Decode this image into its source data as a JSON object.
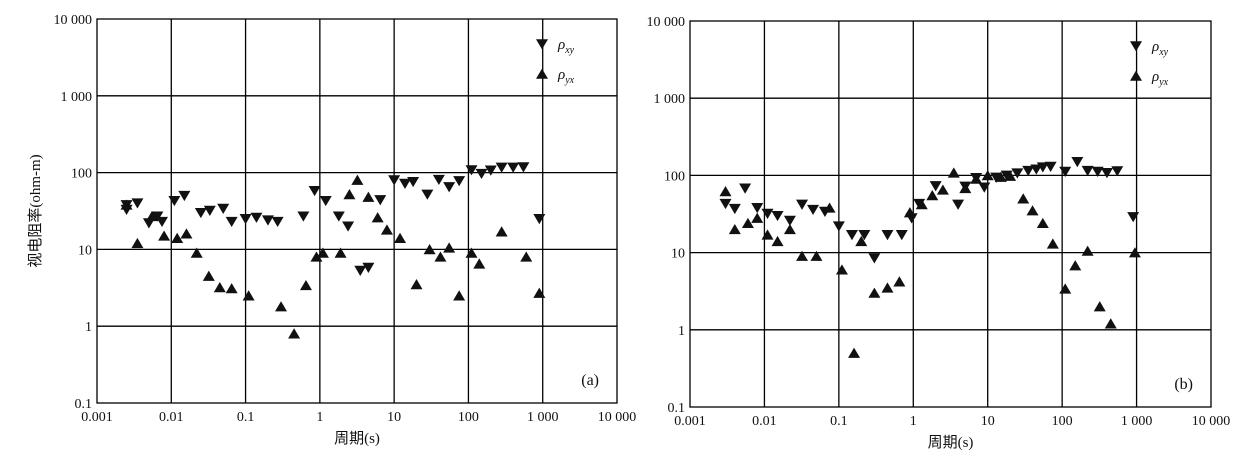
{
  "chart_data": [
    {
      "type": "scatter",
      "panel_label": "(a)",
      "xlabel": "周期(s)",
      "ylabel": "视电阻率(ohm-m)",
      "xscale": "log",
      "yscale": "log",
      "xlim": [
        0.001,
        10000
      ],
      "ylim": [
        0.1,
        10000
      ],
      "xticks": [
        "0.001",
        "0.01",
        "0.1",
        "1",
        "10",
        "100",
        "1 000",
        "10 000"
      ],
      "yticks": [
        "0.1",
        "1",
        "10",
        "100",
        "1 000",
        "10 000"
      ],
      "grid": true,
      "legend_position": "top-right",
      "series": [
        {
          "name": "ρxy",
          "marker": "triangle-down",
          "points": [
            [
              0.0025,
              33
            ],
            [
              0.0025,
              38
            ],
            [
              0.0035,
              40
            ],
            [
              0.005,
              22
            ],
            [
              0.0065,
              27
            ],
            [
              0.0075,
              23
            ],
            [
              0.011,
              43
            ],
            [
              0.015,
              50
            ],
            [
              0.025,
              30
            ],
            [
              0.033,
              32
            ],
            [
              0.05,
              34
            ],
            [
              0.065,
              23
            ],
            [
              0.1,
              25
            ],
            [
              0.14,
              26
            ],
            [
              0.2,
              24
            ],
            [
              0.27,
              23
            ],
            [
              0.6,
              27
            ],
            [
              0.85,
              58
            ],
            [
              1.2,
              43
            ],
            [
              1.8,
              27
            ],
            [
              2.4,
              20
            ],
            [
              3.5,
              5.3
            ],
            [
              4.5,
              5.8
            ],
            [
              6.5,
              44
            ],
            [
              10,
              80
            ],
            [
              14,
              72
            ],
            [
              18,
              76
            ],
            [
              28,
              52
            ],
            [
              40,
              81
            ],
            [
              55,
              65
            ],
            [
              75,
              78
            ],
            [
              110,
              108
            ],
            [
              150,
              97
            ],
            [
              200,
              107
            ],
            [
              280,
              117
            ],
            [
              400,
              117
            ],
            [
              550,
              118
            ],
            [
              900,
              25
            ]
          ]
        },
        {
          "name": "ρyx",
          "marker": "triangle-up",
          "points": [
            [
              0.0025,
              38
            ],
            [
              0.0035,
              12
            ],
            [
              0.0055,
              27
            ],
            [
              0.008,
              15
            ],
            [
              0.012,
              14
            ],
            [
              0.016,
              16
            ],
            [
              0.022,
              9
            ],
            [
              0.032,
              4.5
            ],
            [
              0.045,
              3.2
            ],
            [
              0.065,
              3.1
            ],
            [
              0.11,
              2.5
            ],
            [
              0.3,
              1.8
            ],
            [
              0.45,
              0.8
            ],
            [
              0.65,
              3.4
            ],
            [
              0.9,
              8
            ],
            [
              1.1,
              9
            ],
            [
              1.9,
              9
            ],
            [
              2.5,
              52
            ],
            [
              3.2,
              80
            ],
            [
              4.5,
              48
            ],
            [
              6,
              26
            ],
            [
              8,
              18
            ],
            [
              12,
              14
            ],
            [
              20,
              3.5
            ],
            [
              30,
              10
            ],
            [
              42,
              8
            ],
            [
              55,
              10.5
            ],
            [
              75,
              2.5
            ],
            [
              110,
              9
            ],
            [
              140,
              6.5
            ],
            [
              280,
              17
            ],
            [
              600,
              8
            ],
            [
              900,
              2.7
            ]
          ]
        }
      ]
    },
    {
      "type": "scatter",
      "panel_label": "(b)",
      "xlabel": "周期(s)",
      "ylabel": "",
      "xscale": "log",
      "yscale": "log",
      "xlim": [
        0.001,
        10000
      ],
      "ylim": [
        0.1,
        10000
      ],
      "xticks": [
        "0.001",
        "0.01",
        "0.1",
        "1",
        "10",
        "100",
        "1 000",
        "10 000"
      ],
      "yticks": [
        "0.1",
        "1",
        "10",
        "100",
        "1 000",
        "10 000"
      ],
      "grid": true,
      "legend_position": "top-right",
      "series": [
        {
          "name": "ρxy",
          "marker": "triangle-down",
          "points": [
            [
              0.003,
              43
            ],
            [
              0.004,
              37
            ],
            [
              0.0055,
              68
            ],
            [
              0.008,
              38
            ],
            [
              0.011,
              32
            ],
            [
              0.015,
              30
            ],
            [
              0.022,
              26
            ],
            [
              0.032,
              42
            ],
            [
              0.045,
              36
            ],
            [
              0.065,
              34
            ],
            [
              0.1,
              22
            ],
            [
              0.15,
              17
            ],
            [
              0.22,
              17
            ],
            [
              0.3,
              8.5
            ],
            [
              0.45,
              17
            ],
            [
              0.7,
              17
            ],
            [
              0.95,
              28
            ],
            [
              1.2,
              43
            ],
            [
              2,
              73
            ],
            [
              4,
              42
            ],
            [
              5,
              72
            ],
            [
              7,
              93
            ],
            [
              9,
              70
            ],
            [
              13,
              94
            ],
            [
              18,
              100
            ],
            [
              25,
              107
            ],
            [
              35,
              115
            ],
            [
              45,
              120
            ],
            [
              55,
              128
            ],
            [
              70,
              130
            ],
            [
              110,
              112
            ],
            [
              160,
              150
            ],
            [
              220,
              115
            ],
            [
              300,
              112
            ],
            [
              400,
              108
            ],
            [
              550,
              114
            ],
            [
              900,
              29
            ]
          ]
        },
        {
          "name": "ρyx",
          "marker": "triangle-up",
          "points": [
            [
              0.003,
              62
            ],
            [
              0.004,
              20
            ],
            [
              0.006,
              24
            ],
            [
              0.008,
              28
            ],
            [
              0.011,
              17
            ],
            [
              0.015,
              14
            ],
            [
              0.022,
              20
            ],
            [
              0.032,
              9
            ],
            [
              0.05,
              9
            ],
            [
              0.075,
              38
            ],
            [
              0.11,
              6
            ],
            [
              0.16,
              0.5
            ],
            [
              0.2,
              14
            ],
            [
              0.3,
              3
            ],
            [
              0.45,
              3.5
            ],
            [
              0.65,
              4.2
            ],
            [
              0.9,
              33
            ],
            [
              1.3,
              42
            ],
            [
              1.8,
              55
            ],
            [
              2.5,
              65
            ],
            [
              3.5,
              108
            ],
            [
              5,
              68
            ],
            [
              7,
              90
            ],
            [
              10,
              100
            ],
            [
              15,
              95
            ],
            [
              20,
              98
            ],
            [
              30,
              50
            ],
            [
              40,
              35
            ],
            [
              55,
              24
            ],
            [
              75,
              13
            ],
            [
              110,
              3.4
            ],
            [
              150,
              6.8
            ],
            [
              220,
              10.5
            ],
            [
              320,
              2
            ],
            [
              450,
              1.2
            ],
            [
              950,
              10
            ]
          ]
        }
      ]
    }
  ]
}
